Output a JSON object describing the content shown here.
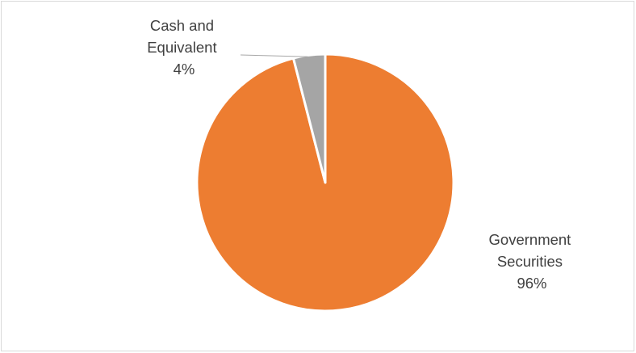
{
  "chart_data": {
    "type": "pie",
    "categories": [
      "Government Securities",
      "Cash and Equivalent"
    ],
    "values": [
      96,
      4
    ],
    "labels": [
      {
        "lines": [
          "Government",
          "Securities",
          "96%"
        ]
      },
      {
        "lines": [
          "Cash and",
          "Equivalent",
          "4%"
        ]
      }
    ],
    "colors": [
      "#ED7D31",
      "#A5A5A5"
    ],
    "start_angle_deg": 0,
    "direction": "clockwise",
    "legend": "none",
    "title": ""
  }
}
